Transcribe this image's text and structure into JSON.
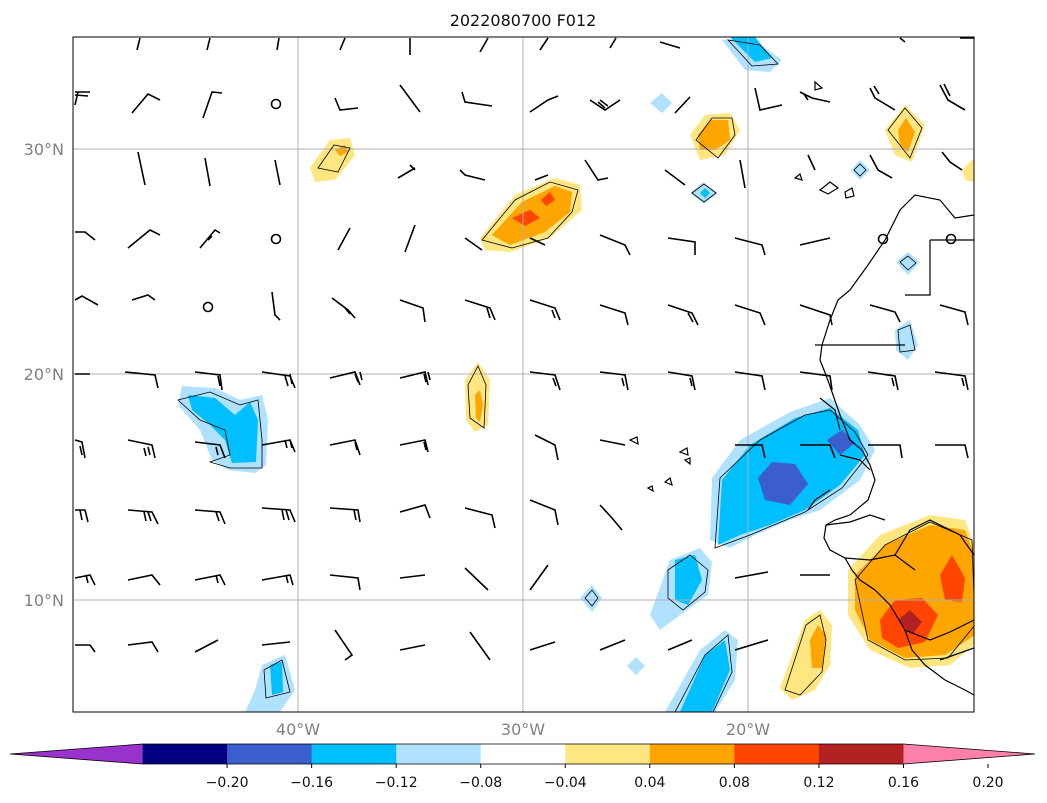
{
  "title": "2022080700 F012",
  "axes": {
    "lat_labels": [
      "30°N",
      "20°N",
      "10°N"
    ],
    "lon_labels": [
      "40°W",
      "30°W",
      "20°W"
    ],
    "gridlines": true,
    "lat_range": [
      5,
      35
    ],
    "lon_range": [
      -50,
      -10
    ]
  },
  "colorbar": {
    "extend": "both",
    "levels": [
      -0.2,
      -0.16,
      -0.12,
      -0.08,
      -0.04,
      0.04,
      0.08,
      0.12,
      0.16,
      0.2
    ],
    "tick_labels": [
      "−0.20",
      "−0.16",
      "−0.12",
      "−0.08",
      "−0.04",
      "0.04",
      "0.08",
      "0.12",
      "0.16",
      "0.20"
    ],
    "colors": [
      "#9932cc",
      "#000080",
      "#3a5fcd",
      "#00bfff",
      "#b0e2ff",
      "#ffffff",
      "#ffe680",
      "#ffa500",
      "#ff4500",
      "#b22222",
      "#ff80a8"
    ]
  }
}
